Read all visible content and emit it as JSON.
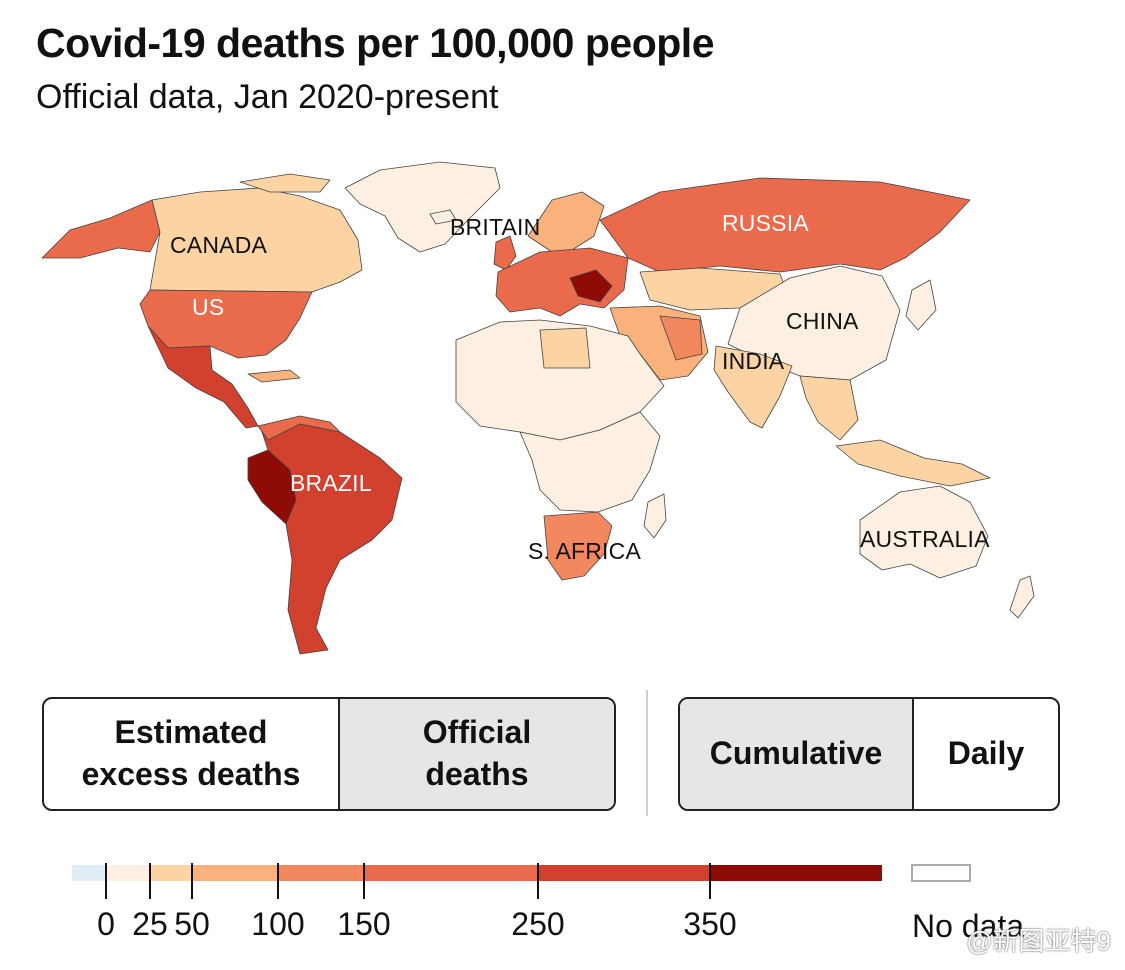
{
  "header": {
    "title": "Covid-19 deaths per 100,000 people",
    "subtitle": "Official data, Jan 2020-present"
  },
  "map": {
    "colors": {
      "bin0": "#e2eef6",
      "bin1": "#fdf0e2",
      "bin2": "#fcd4a4",
      "bin3": "#f9b27c",
      "bin4": "#f3885e",
      "bin5": "#ea6a4c",
      "bin6": "#d2402e",
      "bin7": "#8e0b08",
      "border": "#444444"
    },
    "labels": {
      "canada": "CANADA",
      "us": "US",
      "brazil": "BRAZIL",
      "britain": "BRITAIN",
      "russia": "RUSSIA",
      "china": "CHINA",
      "india": "INDIA",
      "s_africa": "S. AFRICA",
      "australia": "AUSTRALIA"
    }
  },
  "controls": {
    "measure": {
      "options": [
        "Estimated\nexcess deaths",
        "Official\ndeaths"
      ],
      "selected": "Official\ndeaths"
    },
    "mode": {
      "options": [
        "Cumulative",
        "Daily"
      ],
      "selected": "Cumulative"
    }
  },
  "legend": {
    "ticks": [
      "0",
      "25",
      "50",
      "100",
      "150",
      "250",
      "350"
    ],
    "no_data_label": "No data"
  },
  "watermark": "@新图亚特9"
}
